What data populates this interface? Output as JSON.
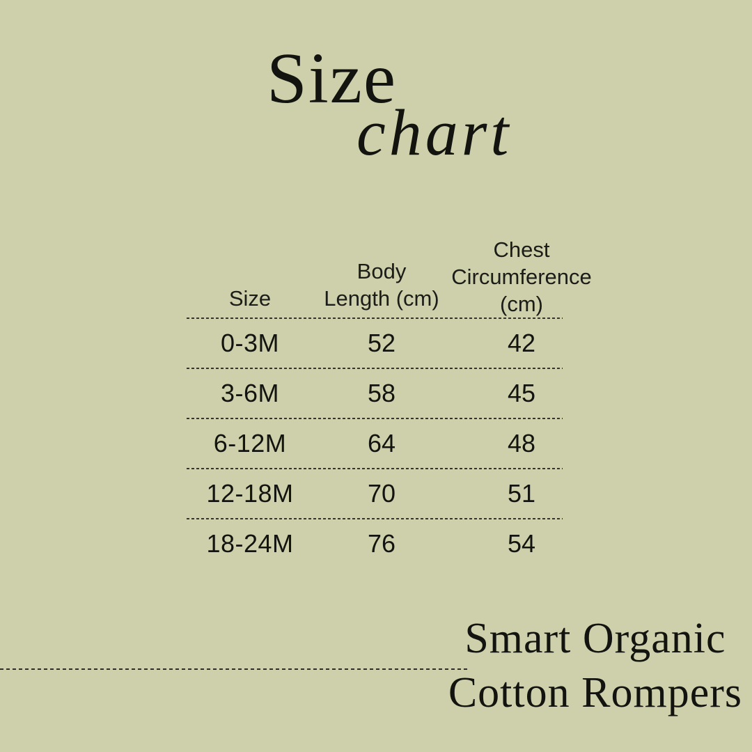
{
  "page": {
    "background_color": "#ced0ab",
    "text_color": "#13130f"
  },
  "title": {
    "word1": "Size",
    "word2": "chart"
  },
  "table": {
    "headers": [
      [
        "Size"
      ],
      [
        "Body",
        "Length (cm)"
      ],
      [
        "Chest",
        "Circumference",
        "(cm)"
      ]
    ],
    "rows": [
      [
        "0-3M",
        "52",
        "42"
      ],
      [
        "3-6M",
        "58",
        "45"
      ],
      [
        "6-12M",
        "64",
        "48"
      ],
      [
        "12-18M",
        "70",
        "51"
      ],
      [
        "18-24M",
        "76",
        "54"
      ]
    ]
  },
  "footer": {
    "line1": "Smart Organic",
    "line2": "Cotton Rompers"
  },
  "chart_data": {
    "type": "table",
    "title": "Size chart",
    "columns": [
      "Size",
      "Body Length (cm)",
      "Chest Circumference (cm)"
    ],
    "rows": [
      [
        "0-3M",
        52,
        42
      ],
      [
        "3-6M",
        58,
        45
      ],
      [
        "6-12M",
        64,
        48
      ],
      [
        "12-18M",
        70,
        51
      ],
      [
        "18-24M",
        76,
        54
      ]
    ],
    "annotations": [
      "Smart Organic Cotton Rompers"
    ],
    "layout": "table centered upper-middle; title top-left of center; product name bottom-right; dashed row separators"
  }
}
